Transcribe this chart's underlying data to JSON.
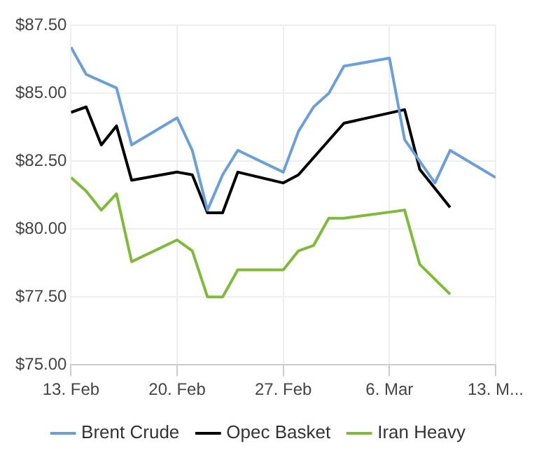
{
  "chart_data": {
    "type": "line",
    "legend": "bottom",
    "grid": true,
    "marker": "none",
    "xlim": [
      "--02-13",
      "--03-13"
    ],
    "xticks": [
      {
        "value": "--02-13",
        "label": "13. Feb"
      },
      {
        "value": "--02-20",
        "label": "20. Feb"
      },
      {
        "value": "--02-27",
        "label": "27. Feb"
      },
      {
        "value": "--03-06",
        "label": "6. Mar"
      },
      {
        "value": "--03-13",
        "label": "13. M..."
      }
    ],
    "ylim": [
      75,
      87.5
    ],
    "yticks": [
      {
        "value": 75,
        "label": "$75.00"
      },
      {
        "value": 77.5,
        "label": "$77.50"
      },
      {
        "value": 80,
        "label": "$80.00"
      },
      {
        "value": 82.5,
        "label": "$82.50"
      },
      {
        "value": 85,
        "label": "$85.00"
      },
      {
        "value": 87.5,
        "label": "$87.50"
      }
    ],
    "series": [
      {
        "name": "Brent Crude",
        "color": "#6a9fd8",
        "x": [
          "--02-13",
          "--02-14",
          "--02-16",
          "--02-17",
          "--02-20",
          "--02-21",
          "--02-22",
          "--02-23",
          "--02-24",
          "--02-27",
          "--02-28",
          "--03-01",
          "--03-02",
          "--03-03",
          "--03-06",
          "--03-07",
          "--03-09",
          "--03-10",
          "--03-13"
        ],
        "values": [
          86.7,
          85.7,
          85.2,
          83.1,
          84.1,
          82.9,
          80.7,
          82.0,
          82.9,
          82.1,
          83.6,
          84.5,
          85.0,
          86.0,
          86.3,
          83.3,
          81.7,
          82.9,
          81.9
        ]
      },
      {
        "name": "Opec Basket",
        "color": "#000000",
        "x": [
          "--02-13",
          "--02-14",
          "--02-15",
          "--02-16",
          "--02-17",
          "--02-20",
          "--02-21",
          "--02-22",
          "--02-23",
          "--02-24",
          "--02-27",
          "--02-28",
          "--03-03",
          "--03-07",
          "--03-08",
          "--03-10"
        ],
        "values": [
          84.3,
          84.5,
          83.1,
          83.8,
          81.8,
          82.1,
          82.0,
          80.6,
          80.6,
          82.1,
          81.7,
          82.0,
          83.9,
          84.4,
          82.2,
          80.8
        ]
      },
      {
        "name": "Iran Heavy",
        "color": "#7fba3a",
        "x": [
          "--02-13",
          "--02-14",
          "--02-15",
          "--02-16",
          "--02-17",
          "--02-20",
          "--02-21",
          "--02-22",
          "--02-23",
          "--02-24",
          "--02-27",
          "--02-28",
          "--03-01",
          "--03-02",
          "--03-03",
          "--03-07",
          "--03-08",
          "--03-10"
        ],
        "values": [
          81.9,
          81.4,
          80.7,
          81.3,
          78.8,
          79.6,
          79.2,
          77.5,
          77.5,
          78.5,
          78.5,
          79.2,
          79.4,
          80.4,
          80.4,
          80.7,
          78.7,
          77.6
        ]
      }
    ]
  }
}
